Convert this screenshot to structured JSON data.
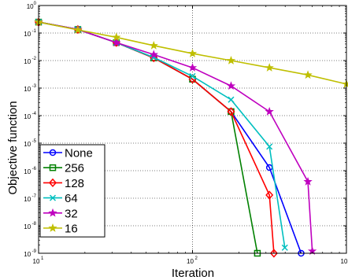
{
  "chart_data": {
    "type": "line",
    "title": "",
    "xlabel": "Iteration",
    "ylabel": "Objective function",
    "xscale": "log",
    "yscale": "log",
    "xlim": [
      10,
      1000
    ],
    "ylim": [
      1e-09,
      1
    ],
    "grid": true,
    "legend_position": "bottom-left",
    "x_ticks": [
      {
        "value": 10,
        "base": "10",
        "exp": "1"
      },
      {
        "value": 100,
        "base": "10",
        "exp": "2"
      },
      {
        "value": 1000,
        "base": "10",
        "exp": "3"
      }
    ],
    "y_ticks": [
      {
        "value": 1,
        "base": "10",
        "exp": "0"
      },
      {
        "value": 0.1,
        "base": "10",
        "exp": "-1"
      },
      {
        "value": 0.01,
        "base": "10",
        "exp": "-2"
      },
      {
        "value": 0.001,
        "base": "10",
        "exp": "-3"
      },
      {
        "value": 0.0001,
        "base": "10",
        "exp": "-4"
      },
      {
        "value": 1e-05,
        "base": "10",
        "exp": "-5"
      },
      {
        "value": 1e-06,
        "base": "10",
        "exp": "-6"
      },
      {
        "value": 1e-07,
        "base": "10",
        "exp": "-7"
      },
      {
        "value": 1e-08,
        "base": "10",
        "exp": "-8"
      },
      {
        "value": 1e-09,
        "base": "10",
        "exp": "-9"
      }
    ],
    "series": [
      {
        "name": "None",
        "color": "#0000ff",
        "marker": "circle",
        "x": [
          10,
          18,
          32,
          56,
          100,
          178,
          316,
          508
        ],
        "y": [
          0.25,
          0.135,
          0.045,
          0.0125,
          0.0021,
          0.00014,
          1.3e-06,
          1e-09
        ]
      },
      {
        "name": "256",
        "color": "#008000",
        "marker": "square",
        "x": [
          10,
          18,
          32,
          56,
          100,
          178,
          264
        ],
        "y": [
          0.25,
          0.135,
          0.045,
          0.0125,
          0.0021,
          0.00014,
          1e-09
        ]
      },
      {
        "name": "128",
        "color": "#ff0000",
        "marker": "diamond",
        "x": [
          10,
          18,
          32,
          56,
          100,
          178,
          316,
          338
        ],
        "y": [
          0.25,
          0.135,
          0.045,
          0.0125,
          0.0021,
          0.00014,
          1.3e-07,
          1e-09
        ]
      },
      {
        "name": "64",
        "color": "#00bfbf",
        "marker": "x",
        "x": [
          10,
          18,
          32,
          56,
          100,
          178,
          316,
          398
        ],
        "y": [
          0.25,
          0.135,
          0.045,
          0.013,
          0.0027,
          0.00038,
          7.5e-06,
          1.6e-09
        ]
      },
      {
        "name": "32",
        "color": "#bf00bf",
        "marker": "star",
        "x": [
          10,
          18,
          32,
          56,
          100,
          178,
          316,
          562,
          600
        ],
        "y": [
          0.25,
          0.135,
          0.045,
          0.0165,
          0.0055,
          0.0012,
          0.00014,
          4e-07,
          1.2e-09
        ]
      },
      {
        "name": "16",
        "color": "#bfbf00",
        "marker": "star",
        "x": [
          10,
          18,
          32,
          56,
          100,
          178,
          316,
          562,
          1000
        ],
        "y": [
          0.25,
          0.13,
          0.07,
          0.035,
          0.018,
          0.01,
          0.0055,
          0.003,
          0.0014
        ]
      }
    ]
  }
}
